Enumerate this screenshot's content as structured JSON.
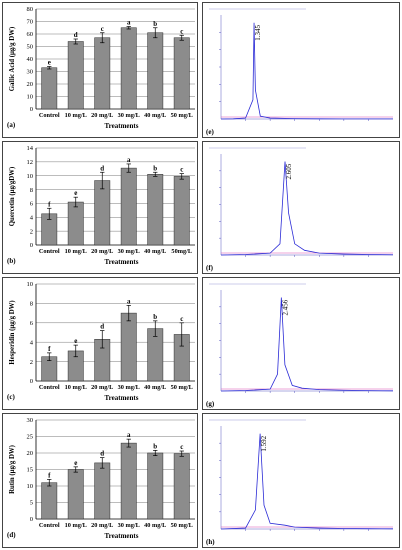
{
  "chart_data": [
    {
      "type": "bar",
      "panel_label": "(a)",
      "ylabel": "Gallic Acid (µg/g DW)",
      "xlabel": "Treatments",
      "categories": [
        "Control",
        "10 mg/L",
        "20 mg/L",
        "30 mg/L",
        "40 mg/L",
        "50 mg/L"
      ],
      "values": [
        33,
        54,
        57,
        65,
        61,
        57
      ],
      "errors": [
        1,
        2,
        4,
        1,
        4,
        2
      ],
      "letters": [
        "e",
        "d",
        "c",
        "a",
        "b",
        "c"
      ],
      "ylim": [
        0,
        80
      ],
      "yticks": [
        0,
        10,
        20,
        30,
        40,
        50,
        60,
        70,
        80
      ],
      "grid": true
    },
    {
      "type": "bar",
      "panel_label": "(b)",
      "ylabel": "Quercetin (µg/gDW)",
      "xlabel": "Treatments",
      "categories": [
        "Control",
        "10 mg/L",
        "20 mg/L",
        "30 mg/L",
        "40 mg/L",
        "50mg/L"
      ],
      "values": [
        4.5,
        6.2,
        9.3,
        11.1,
        10.2,
        9.9
      ],
      "errors": [
        0.8,
        0.7,
        1.2,
        0.6,
        0.3,
        0.4
      ],
      "letters": [
        "f",
        "e",
        "d",
        "a",
        "b",
        "c"
      ],
      "ylim": [
        0,
        14
      ],
      "yticks": [
        0,
        2,
        4,
        6,
        8,
        10,
        12,
        14
      ],
      "grid": true
    },
    {
      "type": "bar",
      "panel_label": "(c)",
      "ylabel": "Hesperidin (µg/g DW)",
      "xlabel": "Treatments",
      "categories": [
        "Control",
        "10 mg/L",
        "20 mg/L",
        "30 mg/L",
        "40 mg/L",
        "50 mg/L"
      ],
      "values": [
        2.5,
        3.1,
        4.3,
        7.0,
        5.4,
        4.8
      ],
      "errors": [
        0.4,
        0.6,
        0.9,
        0.8,
        0.8,
        1.2
      ],
      "letters": [
        "f",
        "e",
        "d",
        "a",
        "b",
        "c"
      ],
      "ylim": [
        0,
        10
      ],
      "yticks": [
        0,
        2,
        4,
        6,
        8,
        10
      ],
      "grid": true
    },
    {
      "type": "bar",
      "panel_label": "(d)",
      "ylabel": "Rutin (µg/g DW)",
      "xlabel": "Treatments",
      "categories": [
        "Control",
        "10 mg/L",
        "20 mg/L",
        "30 mg/L",
        "40 mg/L",
        "50 mg/L"
      ],
      "values": [
        11,
        15,
        17,
        23,
        20,
        19.8
      ],
      "errors": [
        1,
        0.8,
        1.6,
        1.2,
        0.8,
        0.8
      ],
      "letters": [
        "f",
        "e",
        "d",
        "a",
        "b",
        "c"
      ],
      "ylim": [
        0,
        30
      ],
      "yticks": [
        0,
        5,
        10,
        15,
        20,
        25,
        30
      ],
      "grid": true
    },
    {
      "type": "line",
      "panel_label": "(e)",
      "peak_label": "1.345",
      "x": [
        0,
        0.5,
        1.0,
        1.3,
        1.345,
        1.4,
        1.6,
        2.0,
        3.0,
        4.0,
        5.0,
        6.0,
        7.0
      ],
      "y": [
        0,
        0.2,
        1,
        20,
        100,
        30,
        3,
        1,
        0.4,
        0.2,
        0.1,
        0.1,
        0.1
      ]
    },
    {
      "type": "line",
      "panel_label": "(f)",
      "peak_label": "2.605",
      "x": [
        0,
        1.0,
        2.0,
        2.4,
        2.605,
        2.75,
        3.0,
        3.4,
        4.0,
        5.0,
        6.0,
        7.0
      ],
      "y": [
        0,
        0.5,
        2,
        12,
        100,
        45,
        12,
        5,
        2,
        1,
        0.5,
        0.3
      ]
    },
    {
      "type": "line",
      "panel_label": "(g)",
      "peak_label": "2.456",
      "x": [
        0,
        1.0,
        2.0,
        2.3,
        2.456,
        2.6,
        2.9,
        3.3,
        4.0,
        5.0,
        6.0,
        7.0
      ],
      "y": [
        0,
        0.5,
        2,
        18,
        100,
        28,
        6,
        3,
        1.5,
        0.8,
        0.4,
        0.2
      ]
    },
    {
      "type": "line",
      "panel_label": "(h)",
      "peak_label": "1.592",
      "x": [
        0,
        1.0,
        1.4,
        1.592,
        1.75,
        2.0,
        2.6,
        3.0,
        4.0,
        5.0,
        6.0,
        7.0
      ],
      "y": [
        0,
        1,
        20,
        100,
        25,
        6,
        4,
        2,
        1,
        0.5,
        0.3,
        0.2
      ]
    }
  ]
}
